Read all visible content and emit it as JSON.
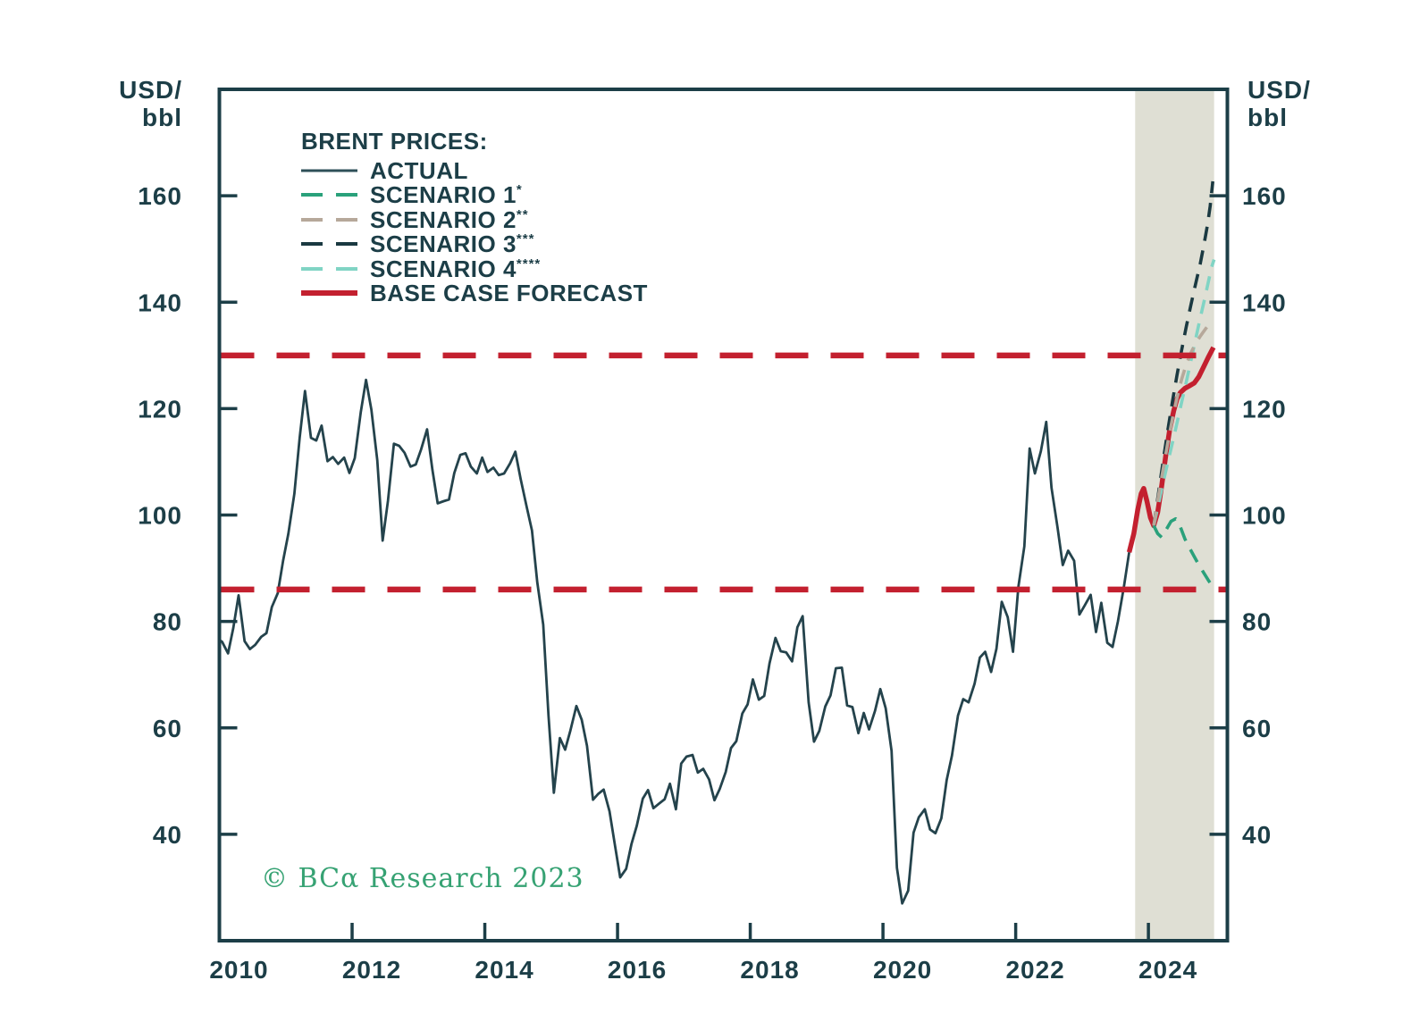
{
  "axis": {
    "unit_line1": "USD/",
    "unit_line2": "bbl"
  },
  "legend": {
    "title": "BRENT PRICES:",
    "items": [
      {
        "id": "actual",
        "label": "ACTUAL",
        "sup": "",
        "color": "#2e4f58",
        "dash": "none",
        "weight": 3
      },
      {
        "id": "scenario-1",
        "label": "SCENARIO 1",
        "sup": "*",
        "color": "#2aa17b",
        "dash": "24 15",
        "weight": 4
      },
      {
        "id": "scenario-2",
        "label": "SCENARIO 2",
        "sup": "**",
        "color": "#b6a89a",
        "dash": "24 15",
        "weight": 4
      },
      {
        "id": "scenario-3",
        "label": "SCENARIO 3",
        "sup": "***",
        "color": "#1a3941",
        "dash": "24 15",
        "weight": 4
      },
      {
        "id": "scenario-4",
        "label": "SCENARIO 4",
        "sup": "****",
        "color": "#80d4c4",
        "dash": "24 15",
        "weight": 4
      },
      {
        "id": "base-case",
        "label": "BASE CASE FORECAST",
        "sup": "",
        "color": "#c3202f",
        "dash": "none",
        "weight": 6
      }
    ]
  },
  "copyright": "© BCα Research 2023",
  "chart_data": {
    "type": "line",
    "title": "BRENT PRICES",
    "ylabel": "USD/bbl",
    "x_range": [
      2010,
      2025.19
    ],
    "y_range": [
      20,
      180
    ],
    "x_ticks": [
      2010,
      2012,
      2014,
      2016,
      2018,
      2020,
      2022,
      2024
    ],
    "y_ticks": [
      40,
      60,
      80,
      100,
      120,
      140,
      160
    ],
    "grid": false,
    "legend_position": "top-left",
    "text_color": "#1c3e47",
    "reference_lines": [
      {
        "name": "upper-dashed-line",
        "value": 130,
        "color": "#c3202f",
        "style": "dashed"
      },
      {
        "name": "lower-dashed-line",
        "value": 86,
        "color": "#c3202f",
        "style": "dashed"
      }
    ],
    "forecast_band": {
      "x0": 2023.8,
      "x1": 2024.99,
      "color": "#dfdfd4"
    },
    "series": [
      {
        "name": "ACTUAL",
        "color": "#24434c",
        "style": "solid",
        "width": 2.8,
        "points": [
          [
            2010.0,
            76.5
          ],
          [
            2010.04,
            76.2
          ],
          [
            2010.13,
            74.0
          ],
          [
            2010.21,
            78.8
          ],
          [
            2010.29,
            84.9
          ],
          [
            2010.38,
            76.3
          ],
          [
            2010.46,
            74.8
          ],
          [
            2010.54,
            75.6
          ],
          [
            2010.63,
            77.1
          ],
          [
            2010.71,
            77.8
          ],
          [
            2010.79,
            82.7
          ],
          [
            2010.88,
            85.3
          ],
          [
            2010.96,
            91.4
          ],
          [
            2011.04,
            96.5
          ],
          [
            2011.13,
            104.0
          ],
          [
            2011.21,
            114.6
          ],
          [
            2011.29,
            123.3
          ],
          [
            2011.38,
            114.5
          ],
          [
            2011.46,
            114.0
          ],
          [
            2011.54,
            116.8
          ],
          [
            2011.63,
            110.1
          ],
          [
            2011.71,
            110.9
          ],
          [
            2011.79,
            109.6
          ],
          [
            2011.88,
            110.8
          ],
          [
            2011.96,
            107.9
          ],
          [
            2012.04,
            110.7
          ],
          [
            2012.13,
            119.3
          ],
          [
            2012.21,
            125.4
          ],
          [
            2012.29,
            119.8
          ],
          [
            2012.38,
            110.3
          ],
          [
            2012.46,
            95.2
          ],
          [
            2012.54,
            102.6
          ],
          [
            2012.63,
            113.4
          ],
          [
            2012.71,
            113.0
          ],
          [
            2012.79,
            111.7
          ],
          [
            2012.88,
            109.1
          ],
          [
            2012.96,
            109.5
          ],
          [
            2013.04,
            112.3
          ],
          [
            2013.13,
            116.1
          ],
          [
            2013.21,
            108.5
          ],
          [
            2013.29,
            102.2
          ],
          [
            2013.38,
            102.6
          ],
          [
            2013.46,
            102.9
          ],
          [
            2013.54,
            107.9
          ],
          [
            2013.63,
            111.3
          ],
          [
            2013.71,
            111.6
          ],
          [
            2013.79,
            109.1
          ],
          [
            2013.88,
            107.8
          ],
          [
            2013.96,
            110.8
          ],
          [
            2014.04,
            108.1
          ],
          [
            2014.13,
            108.9
          ],
          [
            2014.21,
            107.5
          ],
          [
            2014.29,
            107.8
          ],
          [
            2014.38,
            109.7
          ],
          [
            2014.46,
            111.9
          ],
          [
            2014.54,
            106.8
          ],
          [
            2014.63,
            101.6
          ],
          [
            2014.71,
            97.1
          ],
          [
            2014.79,
            87.4
          ],
          [
            2014.88,
            79.4
          ],
          [
            2014.96,
            62.3
          ],
          [
            2015.04,
            47.8
          ],
          [
            2015.13,
            58.1
          ],
          [
            2015.21,
            55.9
          ],
          [
            2015.29,
            59.5
          ],
          [
            2015.38,
            64.1
          ],
          [
            2015.46,
            61.5
          ],
          [
            2015.54,
            56.6
          ],
          [
            2015.63,
            46.5
          ],
          [
            2015.71,
            47.6
          ],
          [
            2015.79,
            48.4
          ],
          [
            2015.88,
            44.3
          ],
          [
            2015.96,
            38.0
          ],
          [
            2016.04,
            31.9
          ],
          [
            2016.13,
            33.5
          ],
          [
            2016.21,
            38.2
          ],
          [
            2016.29,
            41.6
          ],
          [
            2016.38,
            46.7
          ],
          [
            2016.46,
            48.3
          ],
          [
            2016.54,
            44.9
          ],
          [
            2016.63,
            45.8
          ],
          [
            2016.71,
            46.6
          ],
          [
            2016.79,
            49.5
          ],
          [
            2016.88,
            44.7
          ],
          [
            2016.96,
            53.3
          ],
          [
            2017.04,
            54.6
          ],
          [
            2017.13,
            54.9
          ],
          [
            2017.21,
            51.6
          ],
          [
            2017.29,
            52.3
          ],
          [
            2017.38,
            50.3
          ],
          [
            2017.46,
            46.4
          ],
          [
            2017.54,
            48.5
          ],
          [
            2017.63,
            51.7
          ],
          [
            2017.71,
            56.2
          ],
          [
            2017.79,
            57.5
          ],
          [
            2017.88,
            62.7
          ],
          [
            2017.96,
            64.4
          ],
          [
            2018.04,
            69.1
          ],
          [
            2018.13,
            65.3
          ],
          [
            2018.21,
            66.0
          ],
          [
            2018.29,
            72.1
          ],
          [
            2018.38,
            76.9
          ],
          [
            2018.46,
            74.4
          ],
          [
            2018.54,
            74.2
          ],
          [
            2018.63,
            72.5
          ],
          [
            2018.71,
            78.9
          ],
          [
            2018.79,
            81.0
          ],
          [
            2018.88,
            64.8
          ],
          [
            2018.96,
            57.4
          ],
          [
            2019.04,
            59.4
          ],
          [
            2019.13,
            64.0
          ],
          [
            2019.21,
            66.1
          ],
          [
            2019.29,
            71.2
          ],
          [
            2019.38,
            71.3
          ],
          [
            2019.46,
            64.2
          ],
          [
            2019.54,
            63.9
          ],
          [
            2019.63,
            59.0
          ],
          [
            2019.71,
            62.8
          ],
          [
            2019.79,
            59.7
          ],
          [
            2019.88,
            63.2
          ],
          [
            2019.96,
            67.3
          ],
          [
            2020.04,
            63.7
          ],
          [
            2020.13,
            55.7
          ],
          [
            2020.21,
            33.7
          ],
          [
            2020.29,
            27.0
          ],
          [
            2020.38,
            29.4
          ],
          [
            2020.46,
            40.3
          ],
          [
            2020.54,
            43.2
          ],
          [
            2020.63,
            44.7
          ],
          [
            2020.71,
            40.9
          ],
          [
            2020.79,
            40.2
          ],
          [
            2020.88,
            43.0
          ],
          [
            2020.96,
            50.2
          ],
          [
            2021.04,
            54.8
          ],
          [
            2021.13,
            62.3
          ],
          [
            2021.21,
            65.4
          ],
          [
            2021.29,
            64.8
          ],
          [
            2021.38,
            68.3
          ],
          [
            2021.46,
            73.2
          ],
          [
            2021.54,
            74.3
          ],
          [
            2021.63,
            70.5
          ],
          [
            2021.71,
            74.9
          ],
          [
            2021.79,
            83.7
          ],
          [
            2021.88,
            80.8
          ],
          [
            2021.96,
            74.3
          ],
          [
            2022.04,
            86.5
          ],
          [
            2022.13,
            94.1
          ],
          [
            2022.21,
            112.5
          ],
          [
            2022.29,
            107.8
          ],
          [
            2022.38,
            112.0
          ],
          [
            2022.46,
            117.5
          ],
          [
            2022.54,
            105.1
          ],
          [
            2022.63,
            97.7
          ],
          [
            2022.71,
            90.6
          ],
          [
            2022.79,
            93.3
          ],
          [
            2022.88,
            91.4
          ],
          [
            2022.96,
            81.3
          ],
          [
            2023.04,
            83.0
          ],
          [
            2023.13,
            85.0
          ],
          [
            2023.21,
            78.0
          ],
          [
            2023.29,
            83.5
          ],
          [
            2023.38,
            76.0
          ],
          [
            2023.46,
            75.2
          ],
          [
            2023.54,
            80.0
          ],
          [
            2023.63,
            86.5
          ],
          [
            2023.71,
            93.0
          ]
        ]
      },
      {
        "name": "BASE CASE FORECAST",
        "color": "#c3202f",
        "style": "solid",
        "width": 5.5,
        "points": [
          [
            2023.71,
            93.0
          ],
          [
            2023.78,
            96.5
          ],
          [
            2023.84,
            101.0
          ],
          [
            2023.89,
            104.0
          ],
          [
            2023.93,
            105.0
          ],
          [
            2023.98,
            102.5
          ],
          [
            2024.03,
            99.5
          ],
          [
            2024.08,
            98.0
          ],
          [
            2024.14,
            100.5
          ],
          [
            2024.2,
            105.5
          ],
          [
            2024.26,
            111.0
          ],
          [
            2024.32,
            116.0
          ],
          [
            2024.38,
            119.5
          ],
          [
            2024.43,
            121.8
          ],
          [
            2024.48,
            123.0
          ],
          [
            2024.55,
            123.8
          ],
          [
            2024.62,
            124.3
          ],
          [
            2024.69,
            124.8
          ],
          [
            2024.76,
            126.0
          ],
          [
            2024.83,
            127.8
          ],
          [
            2024.9,
            129.6
          ],
          [
            2024.98,
            131.5
          ]
        ]
      },
      {
        "name": "SCENARIO 3",
        "color": "#1a3941",
        "style": "dashed",
        "width": 3.6,
        "points": [
          [
            2024.08,
            98.0
          ],
          [
            2024.15,
            104.0
          ],
          [
            2024.22,
            110.0
          ],
          [
            2024.29,
            115.8
          ],
          [
            2024.36,
            121.2
          ],
          [
            2024.43,
            126.3
          ],
          [
            2024.5,
            131.0
          ],
          [
            2024.57,
            135.4
          ],
          [
            2024.64,
            139.5
          ],
          [
            2024.71,
            143.4
          ],
          [
            2024.78,
            147.2
          ],
          [
            2024.84,
            151.0
          ],
          [
            2024.89,
            154.5
          ],
          [
            2024.93,
            158.0
          ],
          [
            2024.97,
            162.7
          ]
        ]
      },
      {
        "name": "SCENARIO 4",
        "color": "#80d4c4",
        "style": "dashed",
        "width": 3.6,
        "points": [
          [
            2024.08,
            98.0
          ],
          [
            2024.15,
            102.0
          ],
          [
            2024.22,
            106.0
          ],
          [
            2024.29,
            109.8
          ],
          [
            2024.36,
            113.5
          ],
          [
            2024.43,
            117.3
          ],
          [
            2024.5,
            121.2
          ],
          [
            2024.57,
            125.0
          ],
          [
            2024.64,
            129.0
          ],
          [
            2024.71,
            133.0
          ],
          [
            2024.78,
            137.0
          ],
          [
            2024.85,
            140.8
          ],
          [
            2024.91,
            144.2
          ],
          [
            2024.95,
            146.5
          ],
          [
            2024.99,
            148.0
          ]
        ]
      },
      {
        "name": "SCENARIO 2",
        "color": "#b6a89a",
        "style": "dashed",
        "width": 3.6,
        "points": [
          [
            2024.08,
            98.0
          ],
          [
            2024.15,
            103.5
          ],
          [
            2024.22,
            108.5
          ],
          [
            2024.29,
            113.5
          ],
          [
            2024.36,
            118.0
          ],
          [
            2024.43,
            122.0
          ],
          [
            2024.5,
            125.5
          ],
          [
            2024.57,
            128.3
          ],
          [
            2024.64,
            130.5
          ],
          [
            2024.71,
            132.2
          ],
          [
            2024.78,
            133.6
          ],
          [
            2024.85,
            134.8
          ],
          [
            2024.91,
            135.8
          ],
          [
            2024.97,
            136.6
          ]
        ]
      },
      {
        "name": "SCENARIO 1",
        "color": "#2aa17b",
        "style": "dashed",
        "width": 3.6,
        "points": [
          [
            2024.08,
            98.0
          ],
          [
            2024.14,
            96.5
          ],
          [
            2024.2,
            95.8
          ],
          [
            2024.27,
            97.3
          ],
          [
            2024.34,
            98.8
          ],
          [
            2024.41,
            99.3
          ],
          [
            2024.48,
            97.8
          ],
          [
            2024.55,
            95.5
          ],
          [
            2024.62,
            93.8
          ],
          [
            2024.69,
            92.2
          ],
          [
            2024.76,
            90.6
          ],
          [
            2024.83,
            89.2
          ],
          [
            2024.9,
            87.8
          ],
          [
            2024.97,
            86.5
          ]
        ]
      }
    ]
  }
}
